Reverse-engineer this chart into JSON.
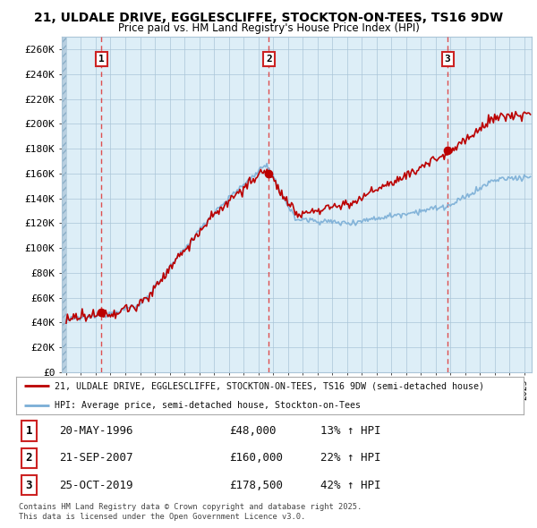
{
  "title1": "21, ULDALE DRIVE, EGGLESCLIFFE, STOCKTON-ON-TEES, TS16 9DW",
  "title2": "Price paid vs. HM Land Registry's House Price Index (HPI)",
  "xlim": [
    1993.7,
    2025.5
  ],
  "ylim": [
    0,
    270000
  ],
  "yticks": [
    0,
    20000,
    40000,
    60000,
    80000,
    100000,
    120000,
    140000,
    160000,
    180000,
    200000,
    220000,
    240000,
    260000
  ],
  "ytick_labels": [
    "£0",
    "£20K",
    "£40K",
    "£60K",
    "£80K",
    "£100K",
    "£120K",
    "£140K",
    "£160K",
    "£180K",
    "£200K",
    "£220K",
    "£240K",
    "£260K"
  ],
  "background_color": "#ddeef7",
  "hatch_color": "#b8cfe0",
  "grid_color": "#aac5d8",
  "line_color_red": "#bb0000",
  "line_color_blue": "#7aaed6",
  "sale_events": [
    {
      "year": 1996.38,
      "price": 48000,
      "label": "1",
      "date": "20-MAY-1996",
      "price_str": "£48,000",
      "pct": "13%"
    },
    {
      "year": 2007.72,
      "price": 160000,
      "label": "2",
      "date": "21-SEP-2007",
      "price_str": "£160,000",
      "pct": "22%"
    },
    {
      "year": 2019.81,
      "price": 178500,
      "label": "3",
      "date": "25-OCT-2019",
      "price_str": "£178,500",
      "pct": "42%"
    }
  ],
  "legend_red": "21, ULDALE DRIVE, EGGLESCLIFFE, STOCKTON-ON-TEES, TS16 9DW (semi-detached house)",
  "legend_blue": "HPI: Average price, semi-detached house, Stockton-on-Tees",
  "footer1": "Contains HM Land Registry data © Crown copyright and database right 2025.",
  "footer2": "This data is licensed under the Open Government Licence v3.0."
}
